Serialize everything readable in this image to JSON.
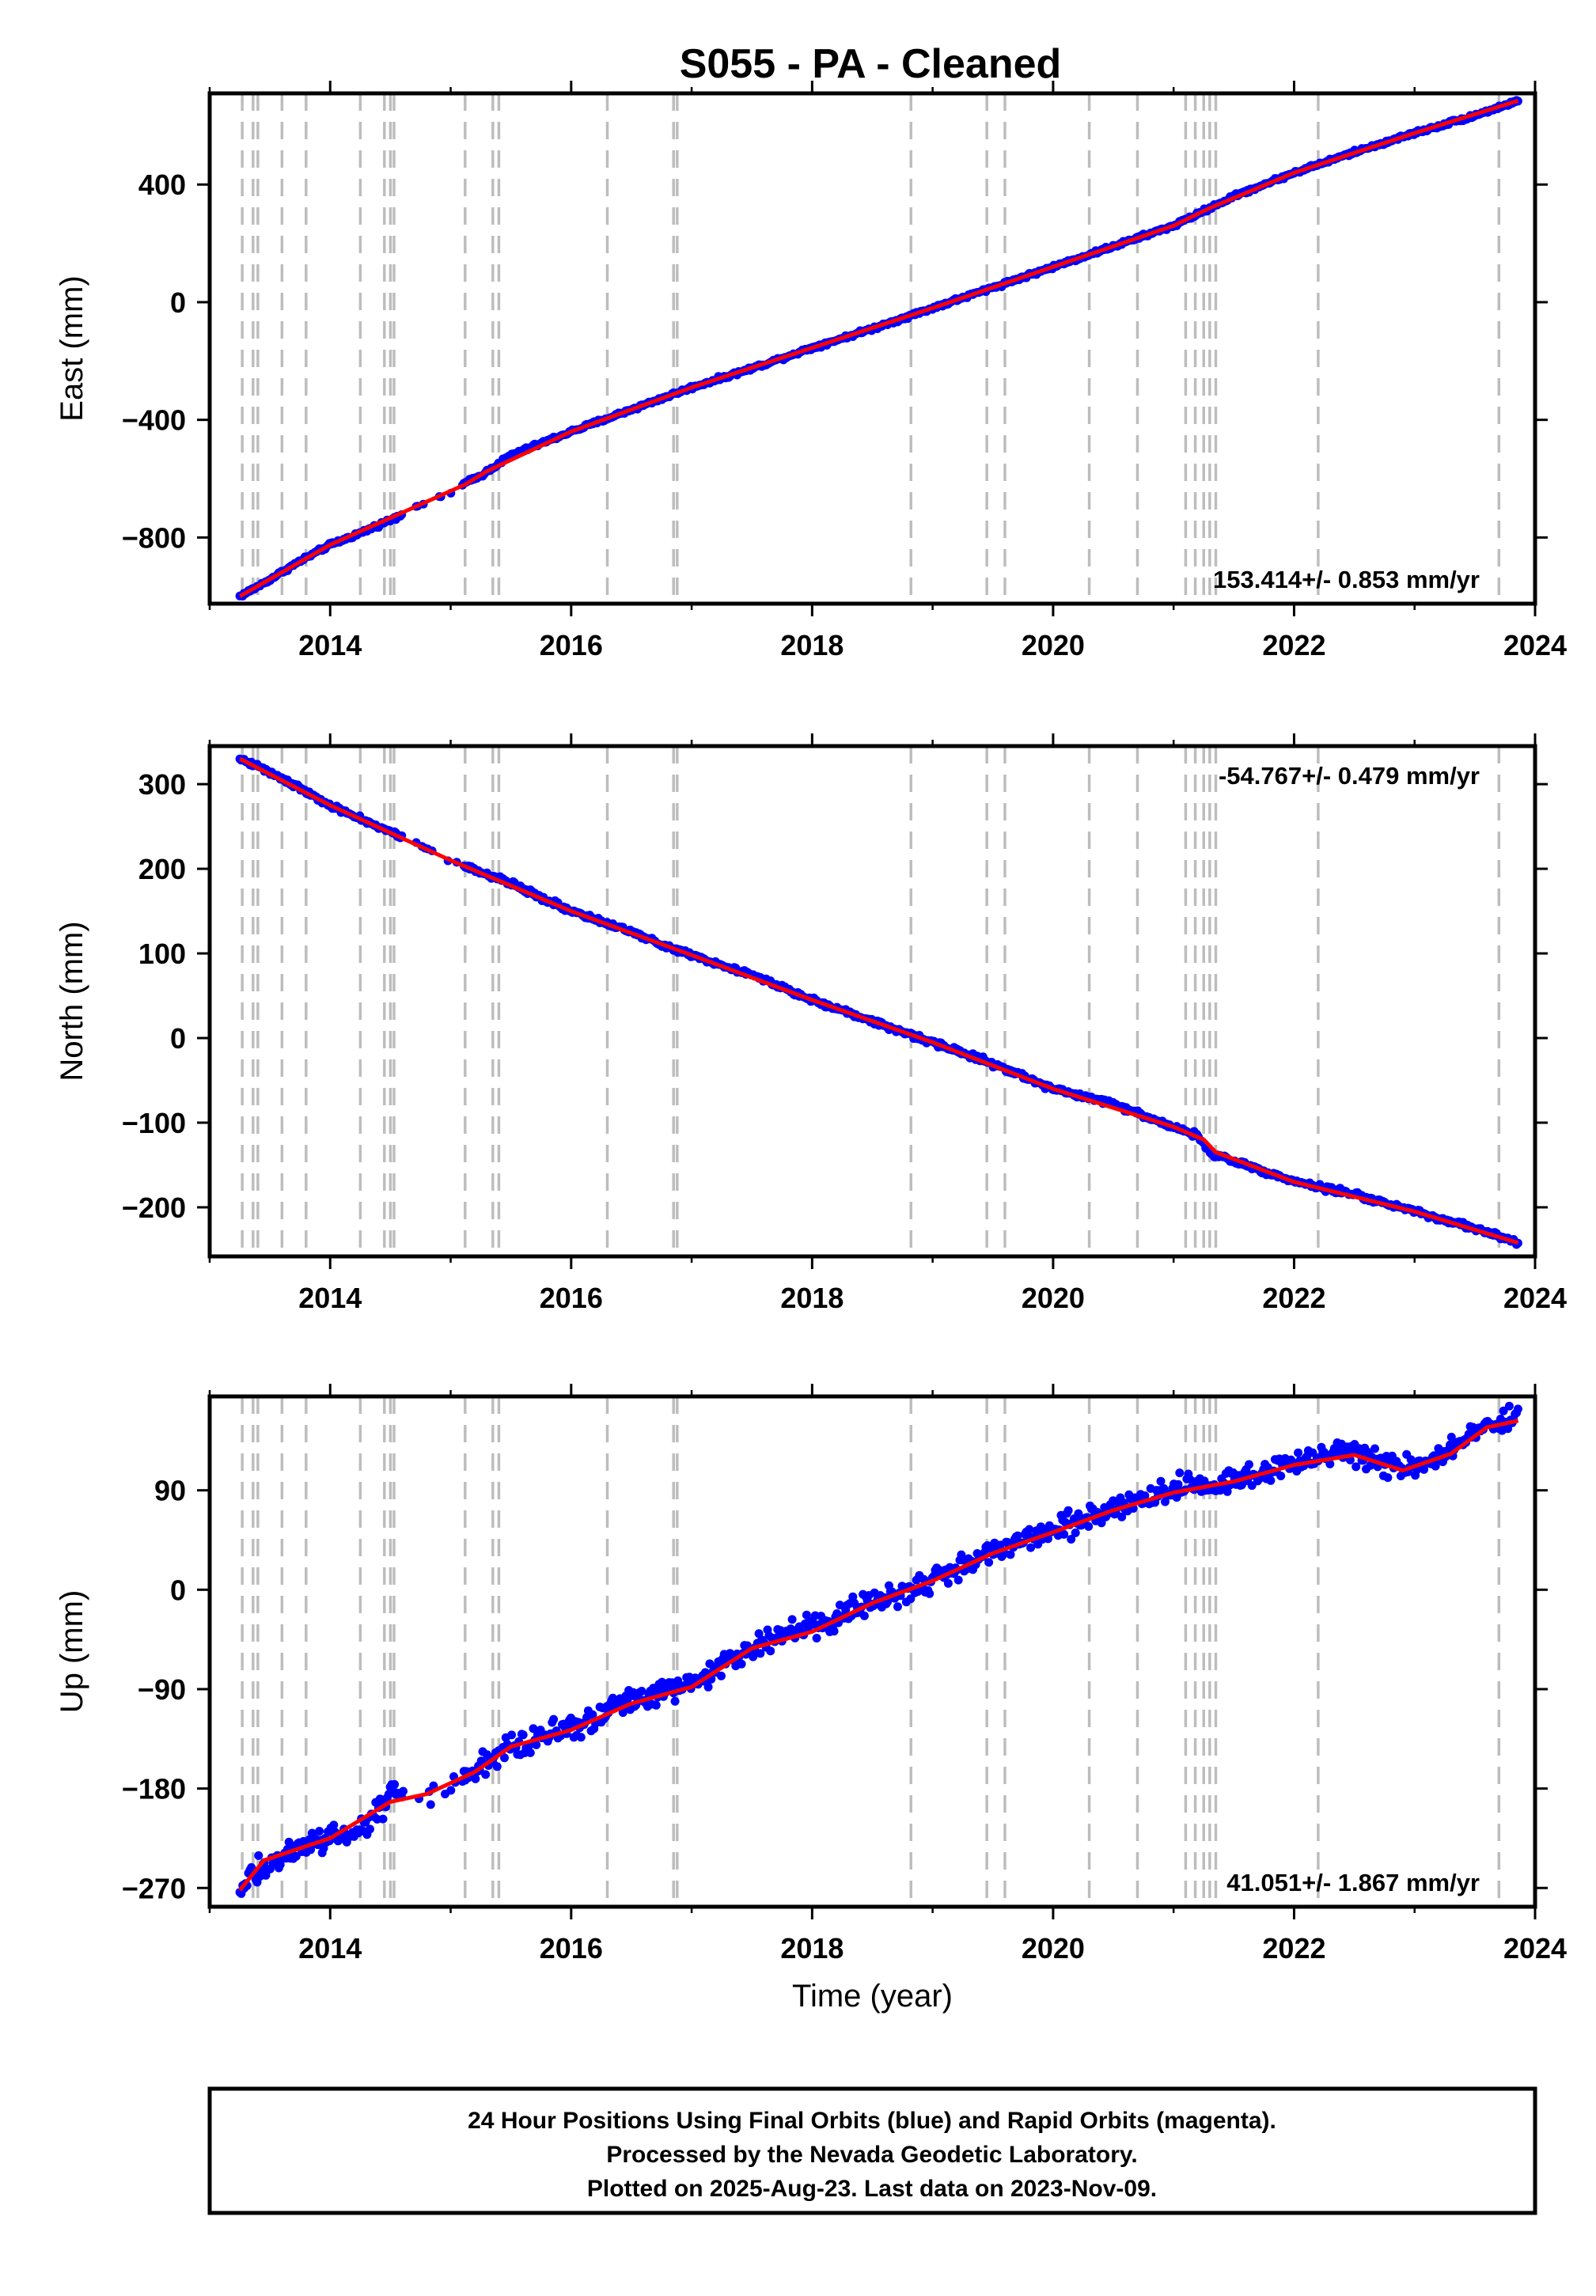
{
  "title": "S055  - PA - Cleaned",
  "colors": {
    "final_orbits": "#0000ff",
    "model_fit": "#ff0000",
    "step_lines": "#bdbdbd",
    "frame": "#000000"
  },
  "footer": {
    "line1": "24 Hour Positions Using Final Orbits (blue) and Rapid Orbits (magenta).",
    "line2": "Processed by the Nevada Geodetic Laboratory.",
    "line3": "Plotted on 2025-Aug-23. Last data on 2023-Nov-09."
  },
  "chart_data": [
    {
      "type": "scatter",
      "id": "east",
      "ylabel": "East (mm)",
      "xlabel": "",
      "xlim": [
        2013.0,
        2024.0
      ],
      "ylim": [
        -1025,
        710
      ],
      "xticks": [
        2014,
        2016,
        2018,
        2020,
        2022,
        2024
      ],
      "yticks": [
        -800,
        -400,
        0,
        400
      ],
      "rate_text": "153.414+/- 0.853 mm/yr",
      "rate_position": "bottom-right",
      "steps": [
        2013.27,
        2013.36,
        2013.4,
        2013.6,
        2013.8,
        2014.25,
        2014.45,
        2014.5,
        2014.53,
        2015.12,
        2015.35,
        2015.4,
        2016.3,
        2016.85,
        2016.88,
        2018.82,
        2019.45,
        2019.6,
        2020.3,
        2020.7,
        2021.1,
        2021.18,
        2021.25,
        2021.3,
        2021.35,
        2022.2,
        2023.7
      ],
      "series": [
        {
          "name": "Final Orbits",
          "x": [
            2013.25,
            2013.45,
            2013.75,
            2014.0,
            2014.25,
            2014.5,
            2014.75,
            2015.0,
            2015.12,
            2015.25,
            2015.5,
            2016.0,
            2016.5,
            2017.0,
            2017.5,
            2018.0,
            2018.5,
            2019.0,
            2019.5,
            2020.0,
            2020.5,
            2021.0,
            2021.25,
            2021.5,
            2022.0,
            2022.5,
            2023.0,
            2023.5,
            2023.86
          ],
          "y": [
            -1000,
            -955,
            -880,
            -825,
            -785,
            -740,
            -690,
            -650,
            -615,
            -590,
            -520,
            -440,
            -365,
            -290,
            -225,
            -155,
            -90,
            -20,
            50,
            120,
            190,
            260,
            310,
            360,
            440,
            510,
            575,
            635,
            685
          ]
        },
        {
          "name": "Model fit",
          "x": [
            2013.25,
            2014.0,
            2015.12,
            2015.3,
            2016.0,
            2017.0,
            2018.0,
            2019.0,
            2020.0,
            2021.0,
            2021.3,
            2022.0,
            2023.0,
            2023.86
          ],
          "y": [
            -1000,
            -825,
            -620,
            -575,
            -440,
            -290,
            -155,
            -20,
            120,
            260,
            320,
            440,
            575,
            685
          ]
        }
      ]
    },
    {
      "type": "scatter",
      "id": "north",
      "ylabel": "North (mm)",
      "xlabel": "",
      "xlim": [
        2013.0,
        2024.0
      ],
      "ylim": [
        -258,
        345
      ],
      "xticks": [
        2014,
        2016,
        2018,
        2020,
        2022,
        2024
      ],
      "yticks": [
        -200,
        -100,
        0,
        100,
        200,
        300
      ],
      "rate_text": "-54.767+/- 0.479 mm/yr",
      "rate_position": "top-right",
      "steps": [
        2013.27,
        2013.36,
        2013.4,
        2013.6,
        2013.8,
        2014.25,
        2014.45,
        2014.5,
        2014.53,
        2015.12,
        2015.35,
        2015.4,
        2016.3,
        2016.85,
        2016.88,
        2018.82,
        2019.45,
        2019.6,
        2020.3,
        2020.7,
        2021.1,
        2021.18,
        2021.25,
        2021.3,
        2021.35,
        2022.2,
        2023.7
      ],
      "series": [
        {
          "name": "Final Orbits",
          "x": [
            2013.25,
            2013.5,
            2014.0,
            2014.5,
            2015.0,
            2015.5,
            2016.0,
            2016.5,
            2017.0,
            2017.5,
            2018.0,
            2018.5,
            2019.0,
            2019.5,
            2020.0,
            2020.5,
            2021.0,
            2021.2,
            2021.3,
            2021.5,
            2022.0,
            2022.5,
            2023.0,
            2023.5,
            2023.86
          ],
          "y": [
            330,
            315,
            275,
            243,
            210,
            183,
            150,
            125,
            98,
            75,
            45,
            20,
            -5,
            -30,
            -60,
            -78,
            -105,
            -115,
            -135,
            -145,
            -170,
            -185,
            -205,
            -225,
            -242
          ]
        },
        {
          "name": "Model fit",
          "x": [
            2013.25,
            2014.0,
            2015.0,
            2016.0,
            2017.0,
            2018.0,
            2019.0,
            2020.0,
            2021.0,
            2021.25,
            2021.35,
            2022.0,
            2023.0,
            2023.86
          ],
          "y": [
            330,
            275,
            210,
            150,
            98,
            45,
            -5,
            -60,
            -105,
            -120,
            -135,
            -170,
            -205,
            -242
          ]
        }
      ]
    },
    {
      "type": "scatter",
      "id": "up",
      "ylabel": "Up (mm)",
      "xlabel": "Time (year)",
      "xlim": [
        2013.0,
        2024.0
      ],
      "ylim": [
        -287,
        175
      ],
      "xticks": [
        2014,
        2016,
        2018,
        2020,
        2022,
        2024
      ],
      "yticks": [
        -270,
        -180,
        -90,
        0,
        90
      ],
      "rate_text": "41.051+/- 1.867 mm/yr",
      "rate_position": "bottom-right",
      "steps": [
        2013.27,
        2013.36,
        2013.4,
        2013.6,
        2013.8,
        2014.25,
        2014.45,
        2014.5,
        2014.53,
        2015.12,
        2015.35,
        2015.4,
        2016.3,
        2016.85,
        2016.88,
        2018.82,
        2019.45,
        2019.6,
        2020.3,
        2020.7,
        2021.1,
        2021.18,
        2021.25,
        2021.3,
        2021.35,
        2022.2,
        2023.7
      ],
      "series": [
        {
          "name": "Final Orbits",
          "x": [
            2013.25,
            2013.4,
            2013.6,
            2014.0,
            2014.3,
            2014.5,
            2014.8,
            2015.2,
            2015.5,
            2016.0,
            2016.5,
            2017.0,
            2017.5,
            2018.0,
            2018.5,
            2019.0,
            2019.5,
            2020.0,
            2020.5,
            2021.0,
            2021.5,
            2022.0,
            2022.5,
            2022.9,
            2023.3,
            2023.6,
            2023.86
          ],
          "y": [
            -270,
            -255,
            -240,
            -225,
            -215,
            -185,
            -185,
            -165,
            -140,
            -125,
            -100,
            -85,
            -50,
            -35,
            -10,
            10,
            35,
            55,
            75,
            90,
            100,
            115,
            125,
            110,
            125,
            150,
            155
          ]
        },
        {
          "name": "Model fit",
          "x": [
            2013.25,
            2013.45,
            2014.0,
            2014.5,
            2014.8,
            2015.2,
            2015.5,
            2016.0,
            2016.5,
            2017.0,
            2017.5,
            2018.0,
            2018.5,
            2019.0,
            2019.5,
            2020.0,
            2020.5,
            2021.0,
            2021.5,
            2022.0,
            2022.5,
            2022.9,
            2023.3,
            2023.6,
            2023.86
          ],
          "y": [
            -272,
            -245,
            -225,
            -192,
            -185,
            -165,
            -142,
            -127,
            -103,
            -88,
            -53,
            -38,
            -12,
            8,
            33,
            52,
            72,
            88,
            98,
            113,
            122,
            108,
            123,
            147,
            153
          ]
        }
      ]
    }
  ]
}
